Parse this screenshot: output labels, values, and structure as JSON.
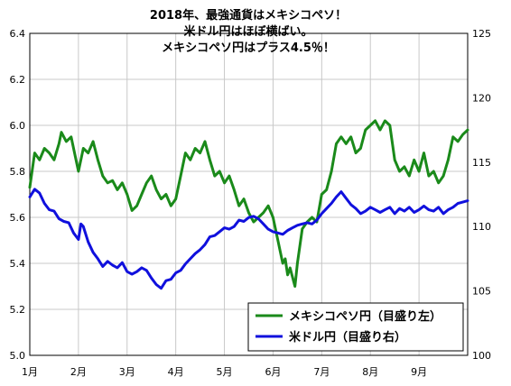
{
  "chart_data": {
    "type": "line",
    "title_lines": [
      "2018年、最強通貨はメキシコペソ！",
      "米ドル円はほぼ横ばい。",
      "メキシコペソ円はプラス4.5％！"
    ],
    "x_tick_labels": [
      "1月",
      "2月",
      "3月",
      "4月",
      "5月",
      "6月",
      "7月",
      "8月",
      "9月"
    ],
    "x_range": [
      0,
      9
    ],
    "y_left": {
      "ticks": [
        "5.0",
        "5.2",
        "5.4",
        "5.6",
        "5.8",
        "6.0",
        "6.2",
        "6.4"
      ],
      "range": [
        5.0,
        6.4
      ]
    },
    "y_right": {
      "ticks": [
        "100",
        "105",
        "110",
        "115",
        "120",
        "125"
      ],
      "range": [
        100,
        125
      ]
    },
    "legend_position": "bottom-right",
    "grid": true,
    "series": [
      {
        "name": "メキシコペソ円（目盛り左）",
        "axis": "left",
        "color": "#1a8a1a",
        "points": [
          [
            0.0,
            5.73
          ],
          [
            0.1,
            5.88
          ],
          [
            0.2,
            5.85
          ],
          [
            0.3,
            5.9
          ],
          [
            0.4,
            5.88
          ],
          [
            0.5,
            5.85
          ],
          [
            0.6,
            5.92
          ],
          [
            0.65,
            5.97
          ],
          [
            0.75,
            5.93
          ],
          [
            0.85,
            5.95
          ],
          [
            0.95,
            5.85
          ],
          [
            1.0,
            5.8
          ],
          [
            1.1,
            5.9
          ],
          [
            1.2,
            5.88
          ],
          [
            1.3,
            5.93
          ],
          [
            1.4,
            5.85
          ],
          [
            1.5,
            5.78
          ],
          [
            1.6,
            5.75
          ],
          [
            1.7,
            5.76
          ],
          [
            1.8,
            5.72
          ],
          [
            1.9,
            5.75
          ],
          [
            2.0,
            5.7
          ],
          [
            2.1,
            5.63
          ],
          [
            2.2,
            5.65
          ],
          [
            2.3,
            5.7
          ],
          [
            2.4,
            5.75
          ],
          [
            2.5,
            5.78
          ],
          [
            2.6,
            5.72
          ],
          [
            2.7,
            5.68
          ],
          [
            2.8,
            5.7
          ],
          [
            2.9,
            5.65
          ],
          [
            3.0,
            5.68
          ],
          [
            3.1,
            5.78
          ],
          [
            3.2,
            5.88
          ],
          [
            3.3,
            5.85
          ],
          [
            3.4,
            5.9
          ],
          [
            3.5,
            5.88
          ],
          [
            3.6,
            5.93
          ],
          [
            3.7,
            5.85
          ],
          [
            3.8,
            5.78
          ],
          [
            3.9,
            5.8
          ],
          [
            4.0,
            5.75
          ],
          [
            4.1,
            5.78
          ],
          [
            4.2,
            5.72
          ],
          [
            4.3,
            5.65
          ],
          [
            4.4,
            5.68
          ],
          [
            4.5,
            5.62
          ],
          [
            4.6,
            5.58
          ],
          [
            4.7,
            5.6
          ],
          [
            4.8,
            5.62
          ],
          [
            4.9,
            5.65
          ],
          [
            5.0,
            5.6
          ],
          [
            5.05,
            5.55
          ],
          [
            5.1,
            5.5
          ],
          [
            5.15,
            5.45
          ],
          [
            5.2,
            5.4
          ],
          [
            5.25,
            5.42
          ],
          [
            5.3,
            5.35
          ],
          [
            5.35,
            5.38
          ],
          [
            5.45,
            5.3
          ],
          [
            5.5,
            5.4
          ],
          [
            5.6,
            5.55
          ],
          [
            5.7,
            5.58
          ],
          [
            5.8,
            5.6
          ],
          [
            5.9,
            5.58
          ],
          [
            6.0,
            5.7
          ],
          [
            6.1,
            5.72
          ],
          [
            6.2,
            5.8
          ],
          [
            6.3,
            5.92
          ],
          [
            6.4,
            5.95
          ],
          [
            6.5,
            5.92
          ],
          [
            6.6,
            5.95
          ],
          [
            6.7,
            5.88
          ],
          [
            6.8,
            5.9
          ],
          [
            6.9,
            5.98
          ],
          [
            7.0,
            6.0
          ],
          [
            7.1,
            6.02
          ],
          [
            7.2,
            5.98
          ],
          [
            7.3,
            6.02
          ],
          [
            7.4,
            6.0
          ],
          [
            7.5,
            5.85
          ],
          [
            7.6,
            5.8
          ],
          [
            7.7,
            5.82
          ],
          [
            7.8,
            5.78
          ],
          [
            7.9,
            5.85
          ],
          [
            8.0,
            5.8
          ],
          [
            8.1,
            5.88
          ],
          [
            8.2,
            5.78
          ],
          [
            8.3,
            5.8
          ],
          [
            8.4,
            5.75
          ],
          [
            8.5,
            5.78
          ],
          [
            8.6,
            5.85
          ],
          [
            8.7,
            5.95
          ],
          [
            8.8,
            5.93
          ],
          [
            8.9,
            5.96
          ],
          [
            9.0,
            5.98
          ]
        ]
      },
      {
        "name": "米ドル円（目盛り右）",
        "axis": "right",
        "color": "#1010dd",
        "points": [
          [
            0.0,
            112.3
          ],
          [
            0.1,
            112.9
          ],
          [
            0.2,
            112.6
          ],
          [
            0.3,
            111.8
          ],
          [
            0.4,
            111.3
          ],
          [
            0.5,
            111.2
          ],
          [
            0.6,
            110.6
          ],
          [
            0.7,
            110.4
          ],
          [
            0.8,
            110.3
          ],
          [
            0.9,
            109.5
          ],
          [
            1.0,
            109.0
          ],
          [
            1.05,
            110.2
          ],
          [
            1.1,
            110.0
          ],
          [
            1.2,
            108.8
          ],
          [
            1.3,
            108.0
          ],
          [
            1.4,
            107.5
          ],
          [
            1.5,
            106.9
          ],
          [
            1.6,
            107.3
          ],
          [
            1.7,
            107.0
          ],
          [
            1.8,
            106.8
          ],
          [
            1.9,
            107.2
          ],
          [
            2.0,
            106.5
          ],
          [
            2.1,
            106.3
          ],
          [
            2.2,
            106.5
          ],
          [
            2.3,
            106.8
          ],
          [
            2.4,
            106.6
          ],
          [
            2.5,
            106.0
          ],
          [
            2.6,
            105.5
          ],
          [
            2.7,
            105.2
          ],
          [
            2.8,
            105.8
          ],
          [
            2.9,
            105.9
          ],
          [
            3.0,
            106.4
          ],
          [
            3.1,
            106.6
          ],
          [
            3.2,
            107.1
          ],
          [
            3.3,
            107.5
          ],
          [
            3.4,
            107.9
          ],
          [
            3.5,
            108.2
          ],
          [
            3.6,
            108.6
          ],
          [
            3.7,
            109.2
          ],
          [
            3.8,
            109.3
          ],
          [
            3.9,
            109.6
          ],
          [
            4.0,
            109.9
          ],
          [
            4.1,
            109.8
          ],
          [
            4.2,
            110.0
          ],
          [
            4.3,
            110.5
          ],
          [
            4.4,
            110.4
          ],
          [
            4.5,
            110.7
          ],
          [
            4.6,
            110.8
          ],
          [
            4.7,
            110.6
          ],
          [
            4.8,
            110.2
          ],
          [
            4.9,
            109.8
          ],
          [
            5.0,
            109.6
          ],
          [
            5.1,
            109.5
          ],
          [
            5.2,
            109.4
          ],
          [
            5.3,
            109.7
          ],
          [
            5.4,
            109.9
          ],
          [
            5.5,
            110.1
          ],
          [
            5.6,
            110.2
          ],
          [
            5.7,
            110.3
          ],
          [
            5.8,
            110.2
          ],
          [
            5.9,
            110.5
          ],
          [
            6.0,
            111.0
          ],
          [
            6.1,
            111.4
          ],
          [
            6.2,
            111.8
          ],
          [
            6.3,
            112.3
          ],
          [
            6.4,
            112.7
          ],
          [
            6.5,
            112.2
          ],
          [
            6.6,
            111.7
          ],
          [
            6.7,
            111.4
          ],
          [
            6.8,
            111.0
          ],
          [
            6.9,
            111.2
          ],
          [
            7.0,
            111.5
          ],
          [
            7.1,
            111.3
          ],
          [
            7.2,
            111.1
          ],
          [
            7.3,
            111.3
          ],
          [
            7.4,
            111.5
          ],
          [
            7.5,
            111.0
          ],
          [
            7.6,
            111.4
          ],
          [
            7.7,
            111.2
          ],
          [
            7.8,
            111.5
          ],
          [
            7.9,
            111.1
          ],
          [
            8.0,
            111.3
          ],
          [
            8.1,
            111.6
          ],
          [
            8.2,
            111.3
          ],
          [
            8.3,
            111.2
          ],
          [
            8.4,
            111.5
          ],
          [
            8.5,
            111.0
          ],
          [
            8.6,
            111.3
          ],
          [
            8.7,
            111.5
          ],
          [
            8.8,
            111.8
          ],
          [
            8.9,
            111.9
          ],
          [
            9.0,
            112.0
          ]
        ]
      }
    ]
  }
}
